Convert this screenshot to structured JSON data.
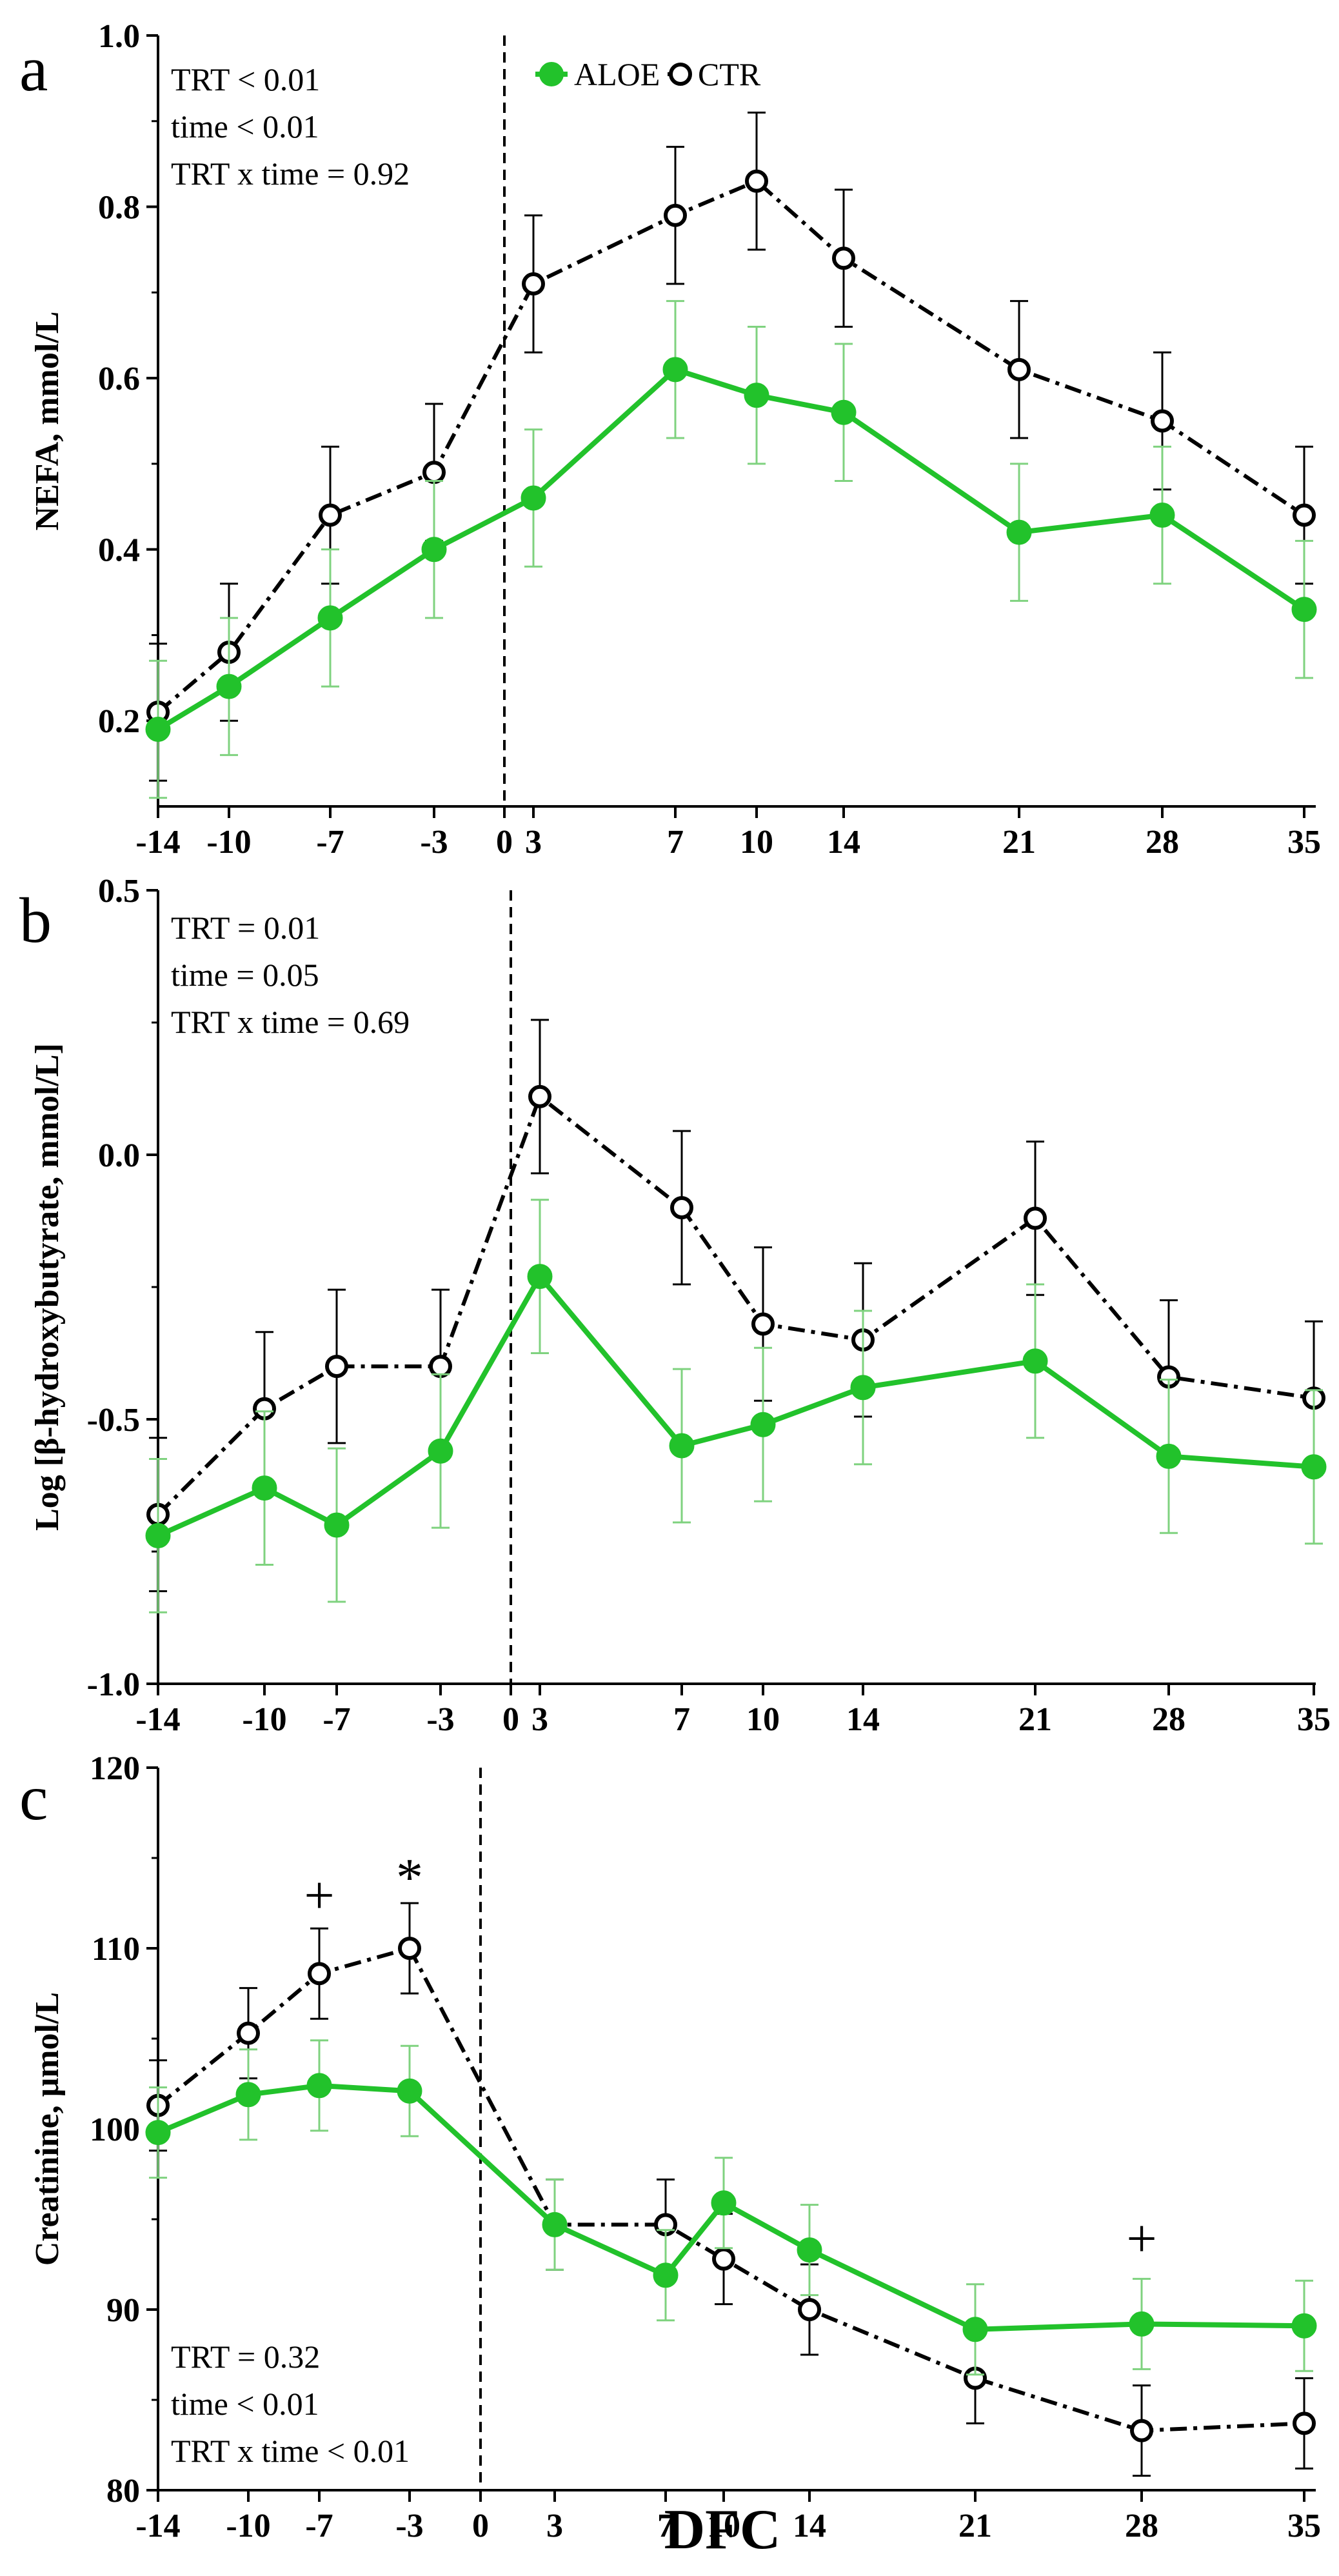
{
  "figure": {
    "xlabel": "DFC",
    "legend": [
      {
        "label": "ALOE",
        "marker": "filled-circle",
        "color": "#22c22b"
      },
      {
        "label": "CTR",
        "marker": "open-circle",
        "color": "#000000"
      }
    ]
  },
  "chart_data": [
    {
      "type": "line",
      "panel": "a",
      "ylabel": "NEFA, mmol/L",
      "xlabel": "DFC",
      "x": [
        -14,
        -10,
        -7,
        -3,
        0,
        3,
        7,
        10,
        14,
        21,
        28,
        35
      ],
      "xticks": [
        "-14",
        "-10",
        "-7",
        "-3",
        "0",
        "3",
        "7",
        "10",
        "14",
        "21",
        "28",
        "35"
      ],
      "ylim": [
        0.1,
        1.0
      ],
      "yticks": [
        "0.2",
        "0.4",
        "0.6",
        "0.8",
        "1.0"
      ],
      "ytick_values": [
        0.2,
        0.4,
        0.6,
        0.8,
        1.0
      ],
      "stats": [
        "TRT < 0.01",
        "time < 0.01",
        "TRT x time = 0.92"
      ],
      "legend_position": "top-center",
      "series": [
        {
          "name": "ALOE",
          "color": "#22c22b",
          "marker": "filled",
          "x": [
            -14,
            -10,
            -7,
            -3,
            3,
            7,
            10,
            14,
            21,
            28,
            35
          ],
          "values": [
            0.19,
            0.24,
            0.32,
            0.4,
            0.46,
            0.61,
            0.58,
            0.56,
            0.42,
            0.44,
            0.33
          ],
          "errors": [
            0.08,
            0.08,
            0.08,
            0.08,
            0.08,
            0.08,
            0.08,
            0.08,
            0.08,
            0.08,
            0.08
          ]
        },
        {
          "name": "CTR",
          "color": "#000000",
          "marker": "open",
          "x": [
            -14,
            -10,
            -7,
            -3,
            3,
            7,
            10,
            14,
            21,
            28,
            35
          ],
          "values": [
            0.21,
            0.28,
            0.44,
            0.49,
            0.71,
            0.79,
            0.83,
            0.74,
            0.61,
            0.55,
            0.44
          ],
          "errors": [
            0.08,
            0.08,
            0.08,
            0.08,
            0.08,
            0.08,
            0.08,
            0.08,
            0.08,
            0.08,
            0.08
          ]
        }
      ]
    },
    {
      "type": "line",
      "panel": "b",
      "ylabel": "Log [β-hydroxybutyrate, mmol/L]",
      "xlabel": "DFC",
      "x": [
        -14,
        -10,
        -7,
        -3,
        0,
        3,
        7,
        10,
        14,
        21,
        28,
        35
      ],
      "xticks": [
        "-14",
        "-10",
        "-7",
        "-3",
        "0",
        "3",
        "7",
        "10",
        "14",
        "21",
        "28",
        "35"
      ],
      "ylim": [
        -1.0,
        0.5
      ],
      "yticks": [
        "-1.0",
        "-0.5",
        "0.0",
        "0.5"
      ],
      "ytick_values": [
        -1.0,
        -0.5,
        0.0,
        0.5
      ],
      "stats": [
        "TRT = 0.01",
        "time = 0.05",
        "TRT x time = 0.69"
      ],
      "series": [
        {
          "name": "ALOE",
          "color": "#22c22b",
          "marker": "filled",
          "x": [
            -14,
            -10,
            -7,
            -3,
            3,
            7,
            10,
            14,
            21,
            28,
            35
          ],
          "values": [
            -0.72,
            -0.63,
            -0.7,
            -0.56,
            -0.23,
            -0.55,
            -0.51,
            -0.44,
            -0.39,
            -0.57,
            -0.59
          ],
          "errors": [
            0.145,
            0.145,
            0.145,
            0.145,
            0.145,
            0.145,
            0.145,
            0.145,
            0.145,
            0.145,
            0.145
          ]
        },
        {
          "name": "CTR",
          "color": "#000000",
          "marker": "open",
          "x": [
            -14,
            -10,
            -7,
            -3,
            3,
            7,
            10,
            14,
            21,
            28,
            35
          ],
          "values": [
            -0.68,
            -0.48,
            -0.4,
            -0.4,
            0.11,
            -0.1,
            -0.32,
            -0.35,
            -0.12,
            -0.42,
            -0.46
          ],
          "errors": [
            0.145,
            0.145,
            0.145,
            0.145,
            0.145,
            0.145,
            0.145,
            0.145,
            0.145,
            0.145,
            0.145
          ]
        }
      ]
    },
    {
      "type": "line",
      "panel": "c",
      "ylabel": "Creatinine, μmol/L",
      "xlabel": "DFC",
      "x": [
        -14,
        -10,
        -7,
        -3,
        0,
        3,
        7,
        10,
        14,
        21,
        28,
        35
      ],
      "xticks": [
        "-14",
        "-10",
        "-7",
        "-3",
        "0",
        "3",
        "7",
        "10",
        "14",
        "21",
        "28",
        "35"
      ],
      "ylim": [
        80,
        120
      ],
      "yticks": [
        "80",
        "90",
        "100",
        "110",
        "120"
      ],
      "ytick_values": [
        80,
        90,
        100,
        110,
        120
      ],
      "stats": [
        "TRT = 0.32",
        "time < 0.01",
        "TRT x time < 0.01"
      ],
      "annotations": [
        {
          "text": "+",
          "x": -7,
          "y": 113
        },
        {
          "text": "*",
          "x": -3,
          "y": 114
        },
        {
          "text": "+",
          "x": 28,
          "y": 94
        }
      ],
      "series": [
        {
          "name": "ALOE",
          "color": "#22c22b",
          "marker": "filled",
          "x": [
            -14,
            -10,
            -7,
            -3,
            3,
            7,
            10,
            14,
            21,
            28,
            35
          ],
          "values": [
            99.8,
            101.9,
            102.4,
            102.1,
            94.7,
            91.9,
            95.9,
            93.3,
            88.9,
            89.2,
            89.1
          ],
          "errors": [
            2.5,
            2.5,
            2.5,
            2.5,
            2.5,
            2.5,
            2.5,
            2.5,
            2.5,
            2.5,
            2.5
          ]
        },
        {
          "name": "CTR",
          "color": "#000000",
          "marker": "open",
          "x": [
            -14,
            -10,
            -7,
            -3,
            3,
            7,
            10,
            14,
            21,
            28,
            35
          ],
          "values": [
            101.3,
            105.3,
            108.6,
            110.0,
            94.7,
            94.7,
            92.8,
            90.0,
            86.2,
            83.3,
            83.7
          ],
          "errors": [
            2.5,
            2.5,
            2.5,
            2.5,
            2.5,
            2.5,
            2.5,
            2.5,
            2.5,
            2.5,
            2.5
          ]
        }
      ]
    }
  ]
}
